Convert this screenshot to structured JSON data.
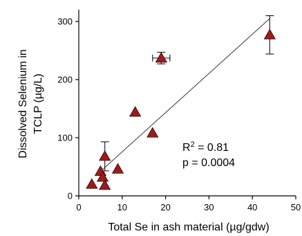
{
  "chart_data": {
    "type": "scatter",
    "xlabel": "Total Se in ash material (µg/gdw)",
    "ylabel_line1": "Dissolved Selenium in",
    "ylabel_line2": "TCLP (µg/L)",
    "xlim": [
      0,
      50
    ],
    "ylim": [
      0,
      300
    ],
    "x_ticks": [
      0,
      10,
      20,
      30,
      40,
      50
    ],
    "y_ticks": [
      0,
      100,
      200,
      300
    ],
    "x_tick_labels": [
      "0",
      "10",
      "20",
      "30",
      "40",
      "50"
    ],
    "y_tick_labels": [
      "0",
      "100",
      "200",
      "300"
    ],
    "points": [
      {
        "x": 3,
        "y": 20
      },
      {
        "x": 5,
        "y": 42
      },
      {
        "x": 5.5,
        "y": 32
      },
      {
        "x": 6,
        "y": 18
      },
      {
        "x": 6,
        "y": 68,
        "yerr": 25
      },
      {
        "x": 9,
        "y": 46
      },
      {
        "x": 13,
        "y": 144
      },
      {
        "x": 17,
        "y": 108
      },
      {
        "x": 19,
        "y": 237,
        "xerr": 2,
        "yerr": 10
      },
      {
        "x": 44,
        "y": 277,
        "yerr": 33
      }
    ],
    "fit_line": {
      "x": [
        5,
        44
      ],
      "y": [
        42,
        305
      ]
    },
    "r2_label": "R",
    "r2_sup": "2",
    "r2_value": " = 0.81",
    "p_label": "p = 0.0004",
    "marker_color": "#9b1c1c",
    "grid": false
  }
}
